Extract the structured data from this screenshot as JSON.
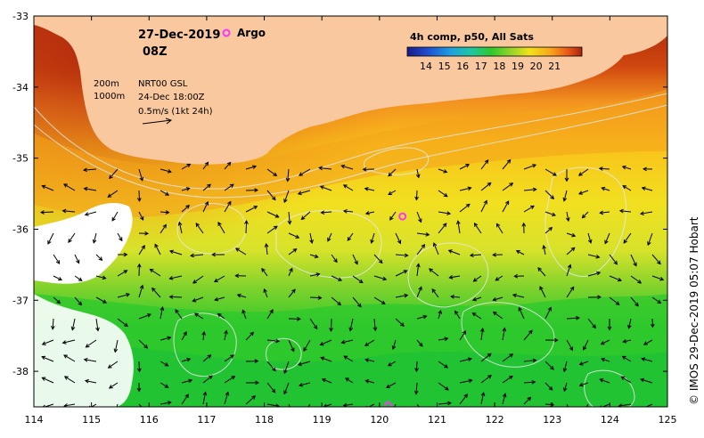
{
  "header": {
    "date": "27-Dec-2019",
    "time": "08Z",
    "argo_label": "Argo"
  },
  "legend": {
    "title": "4h comp, p50, All Sats",
    "ticks": [
      "14",
      "15",
      "16",
      "17",
      "18",
      "19",
      "20",
      "21"
    ],
    "colors": [
      "#1a1a8c",
      "#1f4fd1",
      "#1fa0e0",
      "#20c8a0",
      "#2ec82e",
      "#9ad52a",
      "#f2e21a",
      "#f7a61b",
      "#e8581a",
      "#a8240c"
    ]
  },
  "info": {
    "contour1": "200m",
    "contour2": "1000m",
    "product": "NRT00 GSL",
    "valid": "24-Dec 18:00Z",
    "scale": "0.5m/s (1kt 24h)"
  },
  "axes": {
    "x_ticks": [
      "114",
      "115",
      "116",
      "117",
      "118",
      "119",
      "120",
      "121",
      "122",
      "123",
      "124",
      "125"
    ],
    "y_ticks": [
      "-33",
      "-34",
      "-35",
      "-36",
      "-37",
      "-38"
    ]
  },
  "credit": "© IMOS 29-Dec-2019 05:07 Hobart",
  "colors": {
    "land": "#f9c89e",
    "argo": "#ff33ff",
    "cloud": "#ffffff",
    "contour": "#e8e8e8"
  },
  "argo_floats": [
    {
      "lon": 120.4,
      "lat": -35.82
    },
    {
      "lon": 120.15,
      "lat": -38.48
    }
  ]
}
